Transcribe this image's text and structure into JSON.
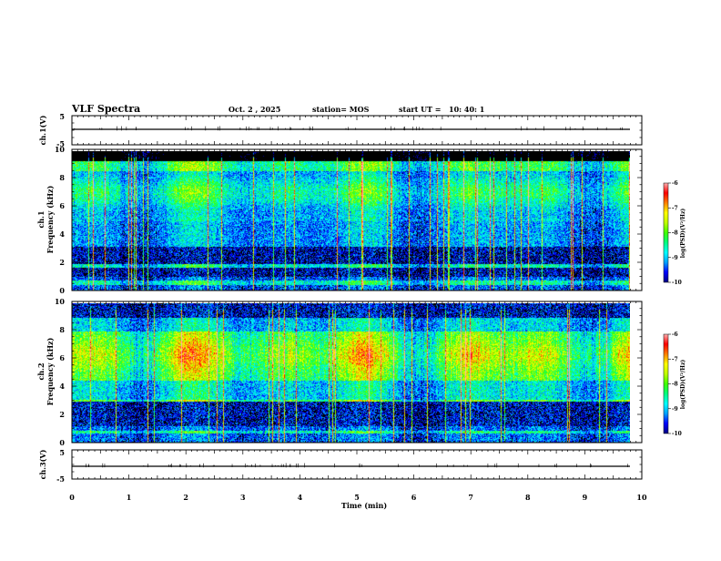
{
  "header": {
    "title": "VLF Spectra",
    "date": "Oct. 2 , 2025",
    "station": "station= MOS",
    "start_label": "start UT =",
    "start_time": "10: 40: 1"
  },
  "chart_data": [
    {
      "type": "line",
      "panel": "ch1-waveform",
      "ylabel": "ch.1(V)",
      "ylim": [
        -5,
        5
      ],
      "yticks": [
        "5",
        "-5"
      ],
      "xlim": [
        0,
        10
      ],
      "series_level": 0
    },
    {
      "type": "heatmap",
      "panel": "ch1-spectrogram",
      "ylabel_line1": "ch.1",
      "ylabel_line2": "Frequency (kHz)",
      "ylim": [
        0,
        10
      ],
      "yticks": [
        "0",
        "2",
        "4",
        "6",
        "8",
        "10"
      ],
      "xlim": [
        0,
        10
      ],
      "colorbar": {
        "label": "log(PSD)(V²/Hz)",
        "range": [
          -10,
          -6
        ],
        "ticks": [
          "-6",
          "-7",
          "-8",
          "-9",
          "-10"
        ]
      }
    },
    {
      "type": "heatmap",
      "panel": "ch2-spectrogram",
      "ylabel_line1": "ch.2",
      "ylabel_line2": "Frequency (kHz)",
      "ylim": [
        0,
        10
      ],
      "yticks": [
        "0",
        "2",
        "4",
        "6",
        "8",
        "10"
      ],
      "xlim": [
        0,
        10
      ],
      "colorbar": {
        "label": "log(PSD)(V²/Hz)",
        "range": [
          -10,
          -6
        ],
        "ticks": [
          "-6",
          "-7",
          "-8",
          "-9",
          "-10"
        ]
      }
    },
    {
      "type": "line",
      "panel": "ch3-waveform",
      "ylabel": "ch.3(V)",
      "ylim": [
        -5,
        5
      ],
      "yticks": [
        "5",
        "-5"
      ],
      "xlim": [
        0,
        10
      ],
      "series_level": 0,
      "xlabel": "Time (min)",
      "xticks": [
        "0",
        "1",
        "2",
        "3",
        "4",
        "5",
        "6",
        "7",
        "8",
        "9",
        "10"
      ]
    }
  ],
  "colors": {
    "frame": "#000000",
    "background": "#ffffff",
    "colormap": [
      "#000080",
      "#0000ff",
      "#00a0ff",
      "#00ffff",
      "#00ff80",
      "#40ff00",
      "#c0ff00",
      "#ffff00",
      "#ff8000",
      "#ff0000",
      "#ffb0b0"
    ]
  }
}
